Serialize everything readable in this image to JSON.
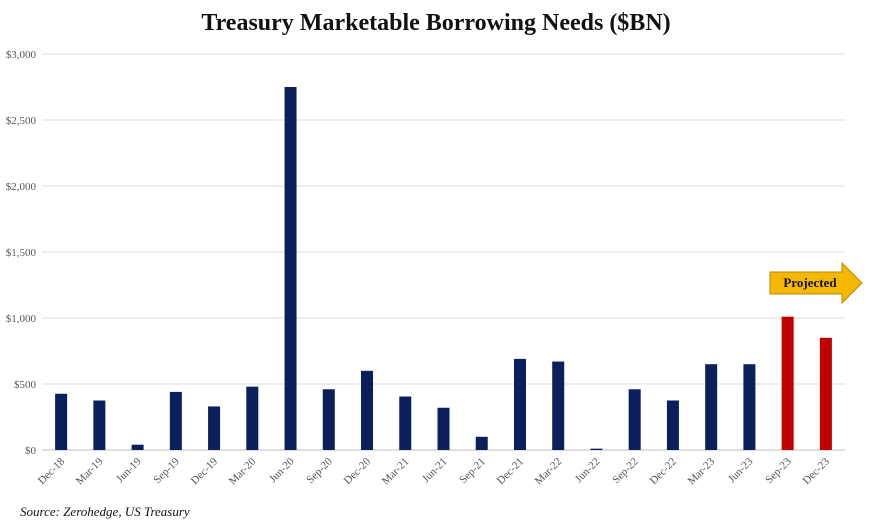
{
  "chart_data": {
    "type": "bar",
    "title": "Treasury Marketable Borrowing Needs ($BN)",
    "xlabel": "",
    "ylabel": "",
    "categories": [
      "Dec-18",
      "Mar-19",
      "Jun-19",
      "Sep-19",
      "Dec-19",
      "Mar-20",
      "Jun-20",
      "Sep-20",
      "Dec-20",
      "Mar-21",
      "Jun-21",
      "Sep-21",
      "Dec-21",
      "Mar-22",
      "Jun-22",
      "Sep-22",
      "Dec-22",
      "Mar-23",
      "Jun-23",
      "Sep-23",
      "Dec-23"
    ],
    "values": [
      426,
      375,
      40,
      440,
      330,
      480,
      2750,
      460,
      600,
      405,
      320,
      100,
      690,
      670,
      10,
      460,
      375,
      650,
      650,
      1010,
      850
    ],
    "ylim": [
      0,
      3000
    ],
    "yticks": [
      0,
      500,
      1000,
      1500,
      2000,
      2500,
      3000
    ],
    "ytick_labels": [
      "$0",
      "$500",
      "$1,000",
      "$1,500",
      "$2,000",
      "$2,500",
      "$3,000"
    ],
    "grid": true,
    "projected_from_index": 19,
    "colors": {
      "actual": "#0a1f5c",
      "projected": "#c00000",
      "arrow": "#f5b800"
    },
    "annotation": "Projected"
  },
  "source": "Source: Zerohedge, US Treasury"
}
